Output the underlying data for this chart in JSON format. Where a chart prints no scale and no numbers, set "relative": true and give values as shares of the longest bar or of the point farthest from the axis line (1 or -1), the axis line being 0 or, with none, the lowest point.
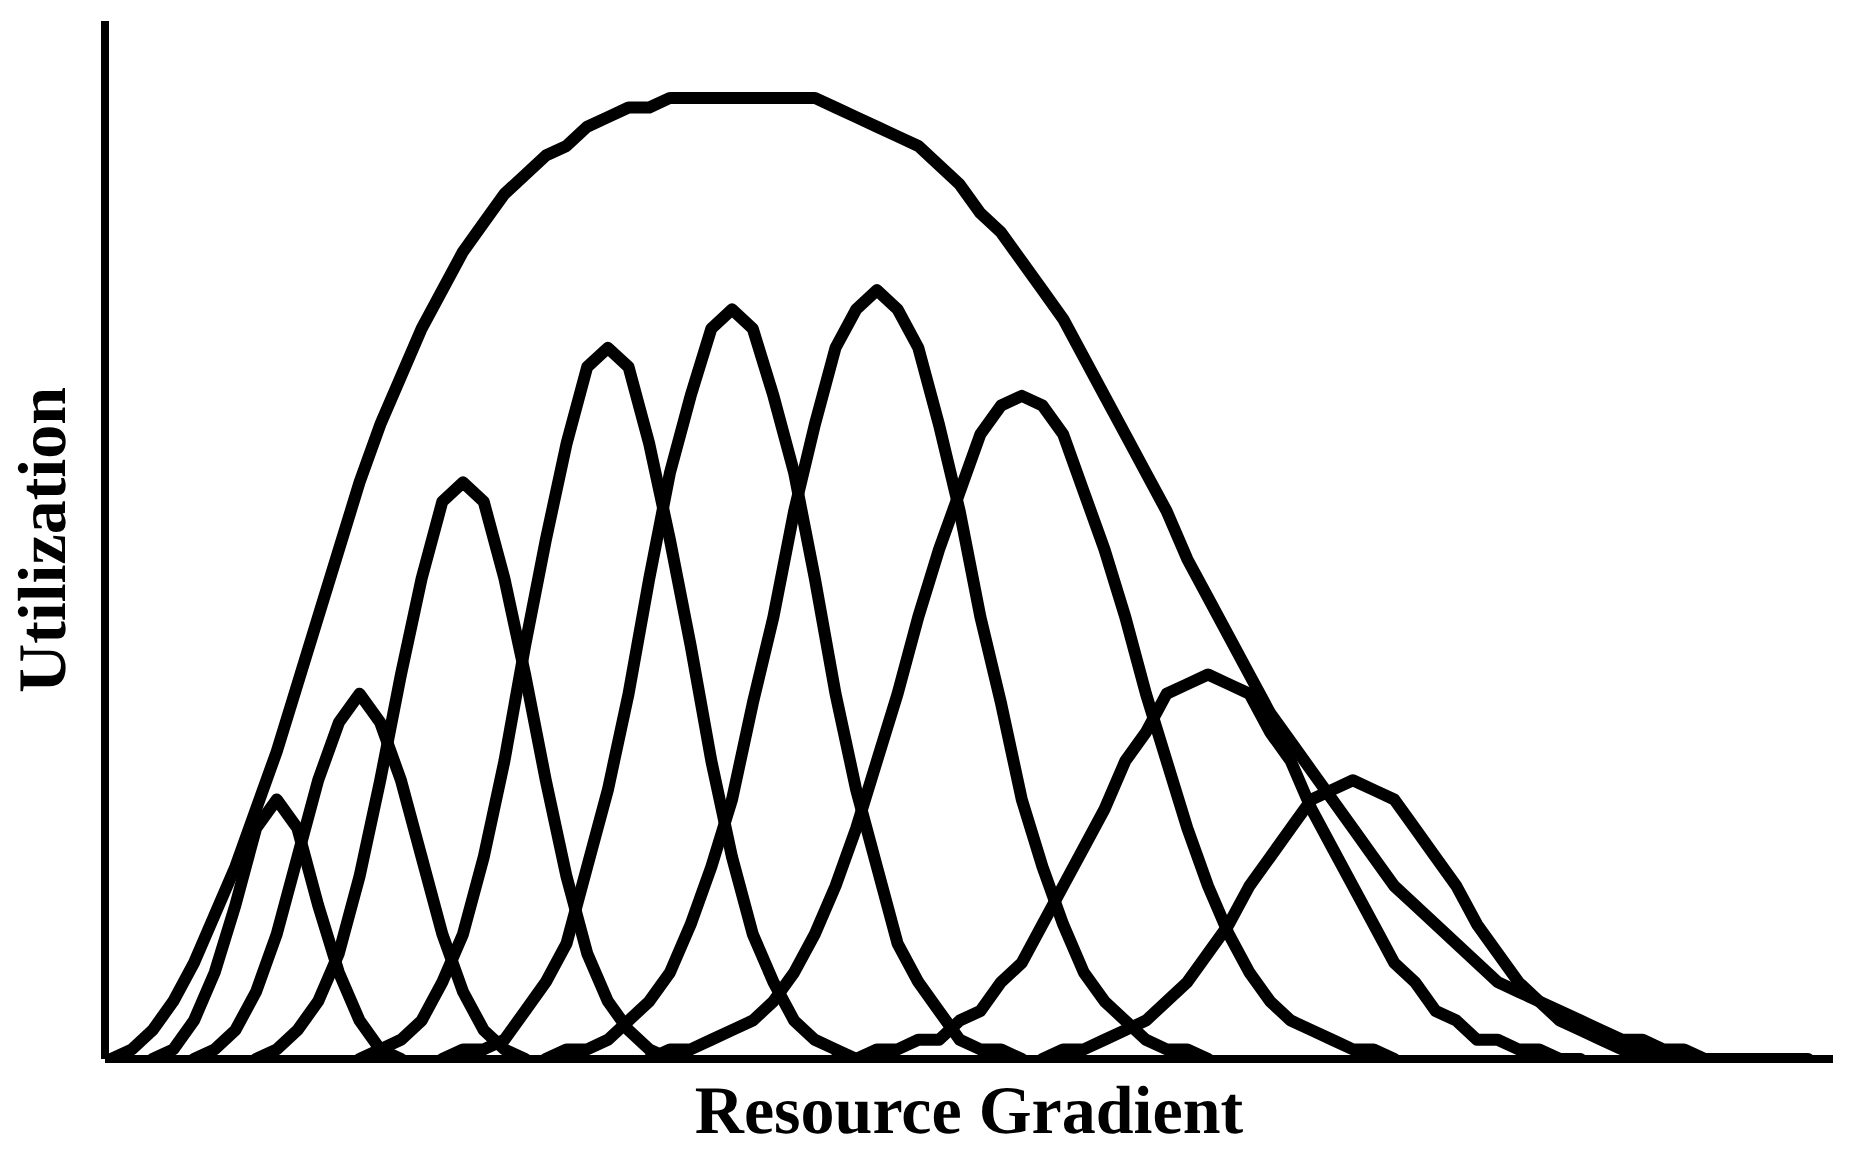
{
  "chart_data": {
    "type": "line",
    "relative": true,
    "xlabel": "Resource Gradient",
    "ylabel": "Utilization",
    "line_style": "solid",
    "categories": [
      null,
      null,
      null,
      null,
      null,
      null,
      null,
      null,
      null,
      null,
      null,
      null,
      null,
      null,
      null,
      null,
      null,
      null,
      null,
      null,
      null,
      null,
      null,
      null,
      null,
      null,
      null,
      null,
      null,
      null,
      null,
      null,
      null,
      null,
      null,
      null,
      null,
      null,
      null,
      null,
      null,
      null,
      null,
      null,
      null,
      null,
      null,
      null,
      null,
      null,
      null,
      null,
      null,
      null,
      null,
      null,
      null,
      null,
      null,
      null,
      null,
      null,
      null,
      null,
      null,
      null,
      null,
      null,
      null,
      null,
      null,
      null,
      null,
      null,
      null,
      null,
      null,
      null,
      null,
      null,
      null,
      null,
      null
    ],
    "series": [
      {
        "color": "#000000",
        "values": [
          0,
          0.01,
          0.03,
          0.06,
          0.1,
          0.15,
          0.2,
          0.26,
          0.32,
          0.39,
          0.46,
          0.53,
          0.6,
          0.66,
          0.71,
          0.76,
          0.8,
          0.84,
          0.87,
          0.9,
          0.92,
          0.94,
          0.95,
          0.97,
          0.98,
          0.99,
          0.99,
          1.0,
          1.0,
          1.0,
          1.0,
          1.0,
          1.0,
          1.0,
          1.0,
          0.99,
          0.98,
          0.97,
          0.96,
          0.95,
          0.93,
          0.91,
          0.88,
          0.86,
          0.83,
          0.8,
          0.77,
          0.73,
          0.69,
          0.65,
          0.61,
          0.57,
          0.52,
          0.48,
          0.44,
          0.4,
          0.36,
          0.33,
          0.3,
          0.27,
          0.24,
          0.21,
          0.18,
          0.16,
          0.14,
          0.12,
          0.1,
          0.08,
          0.07,
          0.06,
          0.05,
          0.04,
          0.03,
          0.02,
          0.02,
          0.01,
          0.01,
          0,
          0,
          0,
          0,
          0,
          0
        ]
      },
      {
        "color": "#000000",
        "values": [
          null,
          null,
          0.0,
          0.01,
          0.04,
          0.09,
          0.16,
          0.24,
          0.27,
          0.24,
          0.16,
          0.09,
          0.04,
          0.01,
          0.0,
          null,
          null,
          null,
          null,
          null,
          null,
          null,
          null,
          null,
          null,
          null,
          null,
          null,
          null,
          null,
          null,
          null,
          null,
          null,
          null,
          null,
          null,
          null,
          null,
          null,
          null,
          null,
          null,
          null,
          null,
          null,
          null,
          null,
          null,
          null,
          null,
          null,
          null,
          null,
          null,
          null,
          null,
          null,
          null,
          null,
          null,
          null,
          null,
          null,
          null,
          null,
          null,
          null,
          null,
          null,
          null,
          null,
          null,
          null,
          null,
          null,
          null,
          null,
          null,
          null,
          null,
          null,
          null
        ]
      },
      {
        "color": "#000000",
        "values": [
          null,
          null,
          null,
          null,
          0.0,
          0.01,
          0.03,
          0.07,
          0.13,
          0.21,
          0.29,
          0.35,
          0.38,
          0.35,
          0.29,
          0.21,
          0.13,
          0.07,
          0.03,
          0.01,
          0.0,
          null,
          null,
          null,
          null,
          null,
          null,
          null,
          null,
          null,
          null,
          null,
          null,
          null,
          null,
          null,
          null,
          null,
          null,
          null,
          null,
          null,
          null,
          null,
          null,
          null,
          null,
          null,
          null,
          null,
          null,
          null,
          null,
          null,
          null,
          null,
          null,
          null,
          null,
          null,
          null,
          null,
          null,
          null,
          null,
          null,
          null,
          null,
          null,
          null,
          null,
          null,
          null,
          null,
          null,
          null,
          null,
          null,
          null,
          null,
          null,
          null,
          null
        ]
      },
      {
        "color": "#000000",
        "values": [
          null,
          null,
          null,
          null,
          null,
          null,
          null,
          0.0,
          0.01,
          0.03,
          0.06,
          0.11,
          0.19,
          0.29,
          0.4,
          0.5,
          0.58,
          0.6,
          0.58,
          0.5,
          0.4,
          0.29,
          0.19,
          0.11,
          0.06,
          0.03,
          0.01,
          0.0,
          null,
          null,
          null,
          null,
          null,
          null,
          null,
          null,
          null,
          null,
          null,
          null,
          null,
          null,
          null,
          null,
          null,
          null,
          null,
          null,
          null,
          null,
          null,
          null,
          null,
          null,
          null,
          null,
          null,
          null,
          null,
          null,
          null,
          null,
          null,
          null,
          null,
          null,
          null,
          null,
          null,
          null,
          null,
          null,
          null,
          null,
          null,
          null,
          null,
          null,
          null,
          null,
          null,
          null,
          null
        ]
      },
      {
        "color": "#000000",
        "values": [
          null,
          null,
          null,
          null,
          null,
          null,
          null,
          null,
          null,
          null,
          null,
          null,
          0.0,
          0.01,
          0.02,
          0.04,
          0.08,
          0.13,
          0.21,
          0.31,
          0.43,
          0.54,
          0.64,
          0.72,
          0.74,
          0.72,
          0.64,
          0.54,
          0.43,
          0.31,
          0.21,
          0.13,
          0.08,
          0.04,
          0.02,
          0.01,
          0.0,
          null,
          null,
          null,
          null,
          null,
          null,
          null,
          null,
          null,
          null,
          null,
          null,
          null,
          null,
          null,
          null,
          null,
          null,
          null,
          null,
          null,
          null,
          null,
          null,
          null,
          null,
          null,
          null,
          null,
          null,
          null,
          null,
          null,
          null,
          null,
          null,
          null,
          null,
          null,
          null,
          null,
          null,
          null,
          null,
          null,
          null
        ]
      },
      {
        "color": "#000000",
        "values": [
          null,
          null,
          null,
          null,
          null,
          null,
          null,
          null,
          null,
          null,
          null,
          null,
          null,
          null,
          null,
          null,
          0.0,
          0.01,
          0.01,
          0.02,
          0.05,
          0.08,
          0.12,
          0.2,
          0.28,
          0.38,
          0.5,
          0.61,
          0.69,
          0.76,
          0.78,
          0.76,
          0.69,
          0.61,
          0.5,
          0.38,
          0.28,
          0.2,
          0.12,
          0.08,
          0.05,
          0.02,
          0.01,
          0.01,
          0.0,
          null,
          null,
          null,
          null,
          null,
          null,
          null,
          null,
          null,
          null,
          null,
          null,
          null,
          null,
          null,
          null,
          null,
          null,
          null,
          null,
          null,
          null,
          null,
          null,
          null,
          null,
          null,
          null,
          null,
          null,
          null,
          null,
          null,
          null,
          null,
          null,
          null,
          null
        ]
      },
      {
        "color": "#000000",
        "values": [
          null,
          null,
          null,
          null,
          null,
          null,
          null,
          null,
          null,
          null,
          null,
          null,
          null,
          null,
          null,
          null,
          null,
          null,
          null,
          null,
          null,
          0.0,
          0.01,
          0.01,
          0.02,
          0.04,
          0.06,
          0.09,
          0.14,
          0.2,
          0.27,
          0.37,
          0.46,
          0.57,
          0.66,
          0.74,
          0.78,
          0.8,
          0.78,
          0.74,
          0.66,
          0.57,
          0.46,
          0.37,
          0.27,
          0.2,
          0.14,
          0.09,
          0.06,
          0.04,
          0.02,
          0.01,
          0.01,
          0.0,
          null,
          null,
          null,
          null,
          null,
          null,
          null,
          null,
          null,
          null,
          null,
          null,
          null,
          null,
          null,
          null,
          null,
          null,
          null,
          null,
          null,
          null,
          null,
          null,
          null,
          null,
          null,
          null,
          null
        ]
      },
      {
        "color": "#000000",
        "values": [
          null,
          null,
          null,
          null,
          null,
          null,
          null,
          null,
          null,
          null,
          null,
          null,
          null,
          null,
          null,
          null,
          null,
          null,
          null,
          null,
          null,
          null,
          null,
          null,
          null,
          null,
          0.0,
          0.01,
          0.01,
          0.02,
          0.03,
          0.04,
          0.06,
          0.09,
          0.13,
          0.18,
          0.24,
          0.31,
          0.38,
          0.46,
          0.53,
          0.59,
          0.65,
          0.68,
          0.69,
          0.68,
          0.65,
          0.59,
          0.53,
          0.46,
          0.38,
          0.31,
          0.24,
          0.18,
          0.13,
          0.09,
          0.06,
          0.04,
          0.03,
          0.02,
          0.01,
          0.01,
          0.0,
          null,
          null,
          null,
          null,
          null,
          null,
          null,
          null,
          null,
          null,
          null,
          null,
          null,
          null,
          null,
          null,
          null,
          null,
          null,
          null
        ]
      },
      {
        "color": "#000000",
        "values": [
          null,
          null,
          null,
          null,
          null,
          null,
          null,
          null,
          null,
          null,
          null,
          null,
          null,
          null,
          null,
          null,
          null,
          null,
          null,
          null,
          null,
          null,
          null,
          null,
          null,
          null,
          null,
          null,
          null,
          null,
          null,
          null,
          null,
          null,
          null,
          0.0,
          0.0,
          0.01,
          0.01,
          0.02,
          0.02,
          0.04,
          0.05,
          0.08,
          0.1,
          0.14,
          0.18,
          0.22,
          0.26,
          0.31,
          0.34,
          0.38,
          0.39,
          0.4,
          0.39,
          0.38,
          0.34,
          0.31,
          0.26,
          0.22,
          0.18,
          0.14,
          0.1,
          0.08,
          0.05,
          0.04,
          0.02,
          0.02,
          0.01,
          0.01,
          0.0,
          0.0,
          null,
          null,
          null,
          null,
          null,
          null,
          null,
          null,
          null,
          null,
          null
        ]
      },
      {
        "color": "#000000",
        "values": [
          null,
          null,
          null,
          null,
          null,
          null,
          null,
          null,
          null,
          null,
          null,
          null,
          null,
          null,
          null,
          null,
          null,
          null,
          null,
          null,
          null,
          null,
          null,
          null,
          null,
          null,
          null,
          null,
          null,
          null,
          null,
          null,
          null,
          null,
          null,
          null,
          null,
          null,
          null,
          null,
          null,
          null,
          null,
          null,
          null,
          0.0,
          0.01,
          0.01,
          0.02,
          0.03,
          0.04,
          0.06,
          0.08,
          0.11,
          0.14,
          0.18,
          0.21,
          0.24,
          0.27,
          0.28,
          0.29,
          0.28,
          0.27,
          0.24,
          0.21,
          0.18,
          0.14,
          0.11,
          0.08,
          0.06,
          0.04,
          0.03,
          0.02,
          0.01,
          0.01,
          0.0,
          null,
          null,
          null,
          null,
          null,
          null,
          null
        ]
      }
    ]
  }
}
